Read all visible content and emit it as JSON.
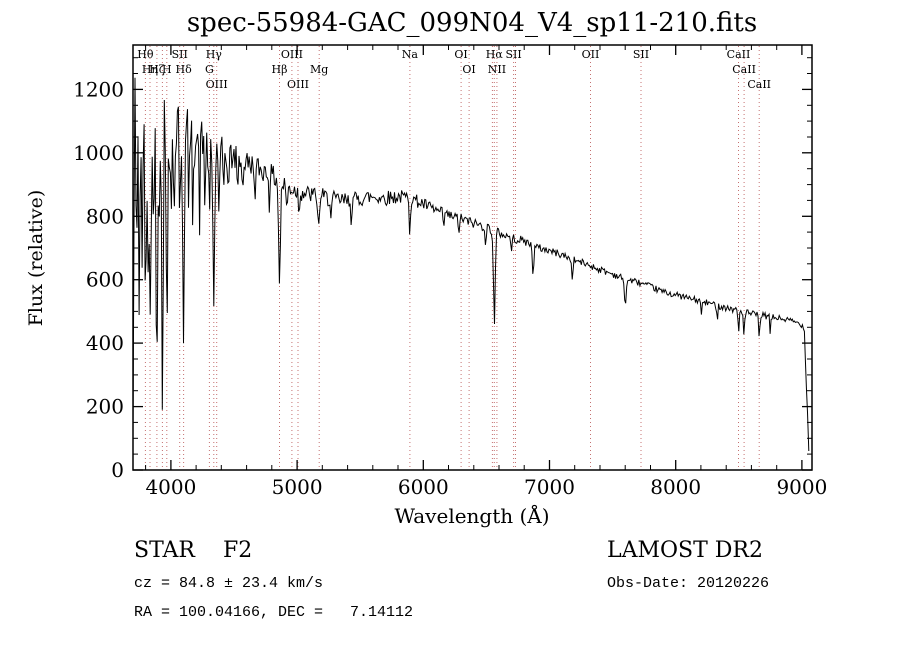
{
  "chart_data": {
    "type": "line",
    "title": "spec-55984-GAC_099N04_V4_sp11-210.fits",
    "xlabel": "Wavelength (Å)",
    "ylabel": "Flux (relative)",
    "xlim": [
      3700,
      9080
    ],
    "ylim": [
      0,
      1340
    ],
    "xticks": [
      4000,
      5000,
      6000,
      7000,
      8000,
      9000
    ],
    "yticks": [
      0,
      200,
      400,
      600,
      800,
      1000,
      1200
    ],
    "x_minor_step": 200,
    "y_minor_step": 50,
    "trace_color": "#000000",
    "spectral_line_color": "#c47070",
    "spectral_label_color": "#3d1410",
    "spectral_lines": [
      {
        "label": "Hθ",
        "wavelength": 3798,
        "row": 1
      },
      {
        "label": "Hη",
        "wavelength": 3835,
        "row": 2
      },
      {
        "label": "Hζ",
        "wavelength": 3889,
        "row": 2
      },
      {
        "label": "",
        "wavelength": 3933,
        "row": 2
      },
      {
        "label": "H",
        "wavelength": 3968,
        "row": 2
      },
      {
        "label": "SII",
        "wavelength": 4070,
        "row": 1
      },
      {
        "label": "Hδ",
        "wavelength": 4101,
        "row": 2
      },
      {
        "label": "G",
        "wavelength": 4305,
        "row": 2
      },
      {
        "label": "Hγ",
        "wavelength": 4340,
        "row": 1
      },
      {
        "label": "OIII",
        "wavelength": 4363,
        "row": 3
      },
      {
        "label": "Hβ",
        "wavelength": 4861,
        "row": 2
      },
      {
        "label": "OIII",
        "wavelength": 4959,
        "row": 1
      },
      {
        "label": "OIII",
        "wavelength": 5007,
        "row": 3
      },
      {
        "label": "Mg",
        "wavelength": 5175,
        "row": 2
      },
      {
        "label": "Na",
        "wavelength": 5894,
        "row": 1
      },
      {
        "label": "OI",
        "wavelength": 6300,
        "row": 1
      },
      {
        "label": "OI",
        "wavelength": 6363,
        "row": 2
      },
      {
        "label": "",
        "wavelength": 6548,
        "row": 2
      },
      {
        "label": "Hα",
        "wavelength": 6563,
        "row": 1
      },
      {
        "label": "NII",
        "wavelength": 6583,
        "row": 2
      },
      {
        "label": "SII",
        "wavelength": 6716,
        "row": 1
      },
      {
        "label": "",
        "wavelength": 6731,
        "row": 1
      },
      {
        "label": "OII",
        "wavelength": 7325,
        "row": 1
      },
      {
        "label": "SII",
        "wavelength": 7725,
        "row": 1
      },
      {
        "label": "CaII",
        "wavelength": 8498,
        "row": 1
      },
      {
        "label": "CaII",
        "wavelength": 8542,
        "row": 2
      },
      {
        "label": "CaII",
        "wavelength": 8662,
        "row": 3
      }
    ],
    "spectrum": {
      "sample_step": 8,
      "seed": 42,
      "continuum": [
        [
          3700,
          70
        ],
        [
          3712,
          1160
        ],
        [
          3760,
          1130
        ],
        [
          3800,
          1120
        ],
        [
          3850,
          1130
        ],
        [
          3900,
          1110
        ],
        [
          3950,
          1100
        ],
        [
          4000,
          1080
        ],
        [
          4050,
          1075
        ],
        [
          4100,
          1065
        ],
        [
          4150,
          1050
        ],
        [
          4200,
          1045
        ],
        [
          4250,
          1030
        ],
        [
          4300,
          1015
        ],
        [
          4350,
          1005
        ],
        [
          4400,
          1000
        ],
        [
          4500,
          985
        ],
        [
          4600,
          970
        ],
        [
          4700,
          950
        ],
        [
          4800,
          930
        ],
        [
          4900,
          895
        ],
        [
          5000,
          880
        ],
        [
          5100,
          868
        ],
        [
          5200,
          862
        ],
        [
          5300,
          852
        ],
        [
          5400,
          848
        ],
        [
          5500,
          856
        ],
        [
          5600,
          862
        ],
        [
          5700,
          858
        ],
        [
          5800,
          862
        ],
        [
          5900,
          858
        ],
        [
          6000,
          838
        ],
        [
          6100,
          818
        ],
        [
          6200,
          802
        ],
        [
          6300,
          792
        ],
        [
          6400,
          778
        ],
        [
          6500,
          766
        ],
        [
          6600,
          748
        ],
        [
          6700,
          732
        ],
        [
          6800,
          722
        ],
        [
          6900,
          702
        ],
        [
          7000,
          692
        ],
        [
          7100,
          678
        ],
        [
          7200,
          662
        ],
        [
          7300,
          648
        ],
        [
          7400,
          632
        ],
        [
          7500,
          618
        ],
        [
          7600,
          602
        ],
        [
          7700,
          592
        ],
        [
          7800,
          578
        ],
        [
          7900,
          562
        ],
        [
          8000,
          552
        ],
        [
          8100,
          542
        ],
        [
          8200,
          532
        ],
        [
          8300,
          522
        ],
        [
          8400,
          512
        ],
        [
          8500,
          502
        ],
        [
          8600,
          492
        ],
        [
          8700,
          486
        ],
        [
          8800,
          480
        ],
        [
          8900,
          472
        ],
        [
          8950,
          466
        ],
        [
          9000,
          458
        ],
        [
          9020,
          440
        ],
        [
          9055,
          60
        ]
      ],
      "absorption_features": [
        [
          3727,
          450,
          5
        ],
        [
          3750,
          620,
          5
        ],
        [
          3770,
          520,
          5
        ],
        [
          3798,
          640,
          6
        ],
        [
          3820,
          470,
          5
        ],
        [
          3835,
          680,
          6
        ],
        [
          3860,
          430,
          5
        ],
        [
          3889,
          720,
          6
        ],
        [
          3912,
          340,
          4
        ],
        [
          3933,
          780,
          6
        ],
        [
          3968,
          680,
          6
        ],
        [
          4005,
          280,
          4
        ],
        [
          4026,
          320,
          4
        ],
        [
          4070,
          280,
          4
        ],
        [
          4101,
          580,
          7
        ],
        [
          4144,
          240,
          4
        ],
        [
          4172,
          210,
          4
        ],
        [
          4226,
          260,
          4
        ],
        [
          4271,
          190,
          4
        ],
        [
          4305,
          240,
          5
        ],
        [
          4340,
          470,
          7
        ],
        [
          4383,
          240,
          4
        ],
        [
          4416,
          150,
          4
        ],
        [
          4455,
          140,
          4
        ],
        [
          4530,
          110,
          4
        ],
        [
          4570,
          100,
          4
        ],
        [
          4668,
          120,
          4
        ],
        [
          4780,
          90,
          4
        ],
        [
          4861,
          320,
          7
        ],
        [
          4920,
          90,
          4
        ],
        [
          5015,
          70,
          4
        ],
        [
          5170,
          110,
          6
        ],
        [
          5270,
          70,
          4
        ],
        [
          5430,
          60,
          4
        ],
        [
          5894,
          110,
          4
        ],
        [
          6160,
          50,
          4
        ],
        [
          6280,
          55,
          4
        ],
        [
          6495,
          60,
          4
        ],
        [
          6563,
          290,
          7
        ],
        [
          6700,
          50,
          4
        ],
        [
          6870,
          85,
          6
        ],
        [
          7180,
          55,
          6
        ],
        [
          7600,
          75,
          8
        ],
        [
          8205,
          45,
          4
        ],
        [
          8330,
          40,
          4
        ],
        [
          8498,
          75,
          4
        ],
        [
          8542,
          85,
          4
        ],
        [
          8662,
          85,
          4
        ],
        [
          8750,
          55,
          4
        ]
      ],
      "noise_amplitude": [
        [
          3700,
          170
        ],
        [
          3850,
          165
        ],
        [
          3950,
          150
        ],
        [
          4050,
          120
        ],
        [
          4150,
          95
        ],
        [
          4250,
          75
        ],
        [
          4350,
          60
        ],
        [
          4500,
          42
        ],
        [
          4700,
          36
        ],
        [
          4900,
          32
        ],
        [
          5100,
          28
        ],
        [
          5400,
          26
        ],
        [
          5700,
          24
        ],
        [
          6000,
          20
        ],
        [
          6300,
          17
        ],
        [
          6600,
          15
        ],
        [
          7000,
          12
        ],
        [
          7400,
          11
        ],
        [
          7800,
          10
        ],
        [
          8200,
          10
        ],
        [
          8600,
          11
        ],
        [
          9000,
          9
        ]
      ]
    }
  },
  "footer": {
    "class_line": "STAR    F2",
    "cz_line": "cz = 84.8 ± 23.4 km/s",
    "radec_line": "RA = 100.04166, DEC =   7.14112",
    "survey_line": "LAMOST DR2",
    "obsdate_line": "Obs-Date: 20120226"
  }
}
